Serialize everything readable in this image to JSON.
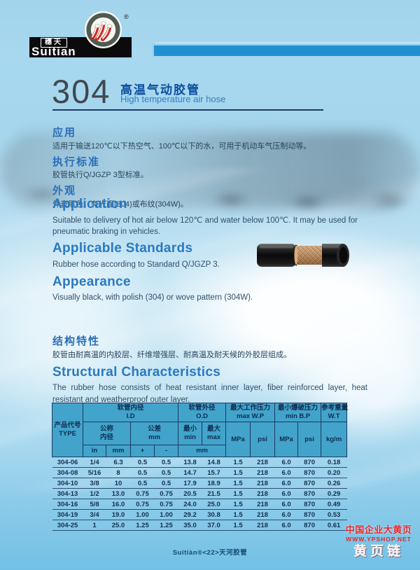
{
  "brand": {
    "logo_cn": "穗天",
    "logo_en": "Suitian",
    "registered": "®"
  },
  "product": {
    "model": "304",
    "title_cn": "高温气动胶管",
    "title_en": "High temperature air hose"
  },
  "sections_cn": [
    {
      "heading": "应用",
      "body": "适用于输送120℃以下热空气、100℃以下的水，可用于机动车气压制动等。"
    },
    {
      "heading": "执行标准",
      "body": "胶管执行Q/JGZP 3型标准。"
    },
    {
      "heading": "外观",
      "body": "外表黑色，有光面(304)或布纹(304W)。"
    }
  ],
  "sections_en": [
    {
      "heading": "Application",
      "body": "Suitable to delivery of hot air below 120℃ and water below 100℃. It may be used for pneumatic braking in vehicles."
    },
    {
      "heading": "Applicable Standards",
      "body": "Rubber hose according to Standard Q/JGZP 3."
    },
    {
      "heading": "Appearance",
      "body": "Visually black, with polish (304) or wove pattern (304W)."
    }
  ],
  "structure_cn": {
    "heading": "结构特性",
    "body": "胶管由耐高温的内胶层、纤维增强层、耐高温及耐天候的外胶层组成。"
  },
  "structure_en": {
    "heading": "Structural Characteristics",
    "body": "The rubber hose consists of heat resistant inner layer, fiber reinforced layer, heat resistant and weatherproof outer layer."
  },
  "table": {
    "header": {
      "type_cn": "产品代号",
      "type_en": "TYPE",
      "id_cn": "软管内径",
      "id_en": "I.D",
      "od_cn": "软管外径",
      "od_en": "O.D",
      "wp_cn": "最大工作压力",
      "wp_en": "max W.P",
      "bp_cn": "最小爆破压力",
      "bp_en": "min B.P",
      "wt_cn": "参考重量",
      "wt_en": "W.T",
      "nominal_cn_1": "公称",
      "nominal_cn_2": "内径",
      "tol_cn": "公差",
      "tol_unit": "mm",
      "min_cn": "最小",
      "min_en": "min",
      "max_cn": "最大",
      "max_en": "max",
      "unit_in": "in",
      "unit_mm": "mm",
      "plus": "+",
      "minus": "-",
      "od_unit": "mm",
      "mpa": "MPa",
      "psi": "psi",
      "kgm": "kg/m"
    },
    "rows": [
      [
        "304-06",
        "1/4",
        "6.3",
        "0.5",
        "0.5",
        "13.8",
        "14.8",
        "1.5",
        "218",
        "6.0",
        "870",
        "0.18"
      ],
      [
        "304-08",
        "5/16",
        "8",
        "0.5",
        "0.5",
        "14.7",
        "15.7",
        "1.5",
        "218",
        "6.0",
        "870",
        "0.20"
      ],
      [
        "304-10",
        "3/8",
        "10",
        "0.5",
        "0.5",
        "17.9",
        "18.9",
        "1.5",
        "218",
        "6.0",
        "870",
        "0.26"
      ],
      [
        "304-13",
        "1/2",
        "13.0",
        "0.75",
        "0.75",
        "20.5",
        "21.5",
        "1.5",
        "218",
        "6.0",
        "870",
        "0.29"
      ],
      [
        "304-16",
        "5/8",
        "16.0",
        "0.75",
        "0.75",
        "24.0",
        "25.0",
        "1.5",
        "218",
        "6.0",
        "870",
        "0.49"
      ],
      [
        "304-19",
        "3/4",
        "19.0",
        "1.00",
        "1.00",
        "29.2",
        "30.8",
        "1.5",
        "218",
        "6.0",
        "870",
        "0.53"
      ],
      [
        "304-25",
        "1",
        "25.0",
        "1.25",
        "1.25",
        "35.0",
        "37.0",
        "1.5",
        "218",
        "6.0",
        "870",
        "0.61"
      ]
    ]
  },
  "footer": {
    "text": "Suitiàn®<22>天河胶管"
  },
  "watermark": {
    "line1": "中国企业大黄页",
    "line2": "WWW.YPSHOP.NET",
    "line3": "黄页链"
  },
  "colors": {
    "accent_bar_blue": "#1f91d2",
    "heading_blue": "#2a79c0",
    "title_navy": "#0d4d9d",
    "table_header_bg": "#42a3cb",
    "table_border": "#1d3a5f",
    "watermark_red": "#e8262b",
    "logo_band_black": "#0b0b0b",
    "logo_circle_olive": "#4f5b51",
    "hose_braid_tan": "#c79a6d"
  }
}
